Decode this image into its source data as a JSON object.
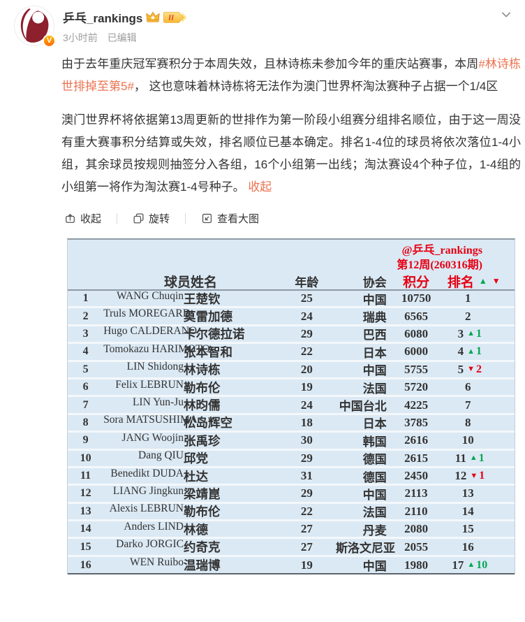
{
  "header": {
    "username": "乒乓_rankings",
    "timestamp": "3小时前",
    "edited_label": "已编辑",
    "vip_level": "II"
  },
  "post": {
    "p1_before": "由于去年重庆冠军赛积分于本周失效，且林诗栋未参加今年的重庆站赛事，本周",
    "p1_link": "#林诗栋世排掉至第5#",
    "p1_after": "， 这也意味着林诗栋将无法作为澳门世界杯淘汰赛种子占据一个1/4区",
    "p2": "澳门世界杯将依据第13周更新的世排作为第一阶段小组赛分组排名顺位，由于这一周没有重大赛事积分结算或失效，排名顺位已基本确定。排名1-4位的球员将依次落位1-4小组，其余球员按规则抽签分入各组，16个小组第一出线；淘汰赛设4个种子位，1-4组的小组第一将作为淘汰赛1-4号种子。",
    "p2_link": "收起"
  },
  "toolbar": {
    "collapse": "收起",
    "rotate": "旋转",
    "view_large": "查看大图"
  },
  "table_image": {
    "credit": "@乒乓_rankings",
    "week": "第12周(260316期)",
    "columns": {
      "name": "球员姓名",
      "age": "年龄",
      "assoc": "协会",
      "points": "积分",
      "rank": "排名"
    },
    "legend_up": "▲",
    "legend_down": "▼",
    "colors": {
      "table_bg": "#dbe9f4",
      "red": "#e60012",
      "green": "#00a651",
      "link": "#eb7350"
    },
    "rows": [
      {
        "no": "1",
        "name_en": "WANG Chuqin",
        "name_zh": "王楚钦",
        "age": "25",
        "assoc": "中国",
        "points": "10750",
        "rank": "1",
        "change": null
      },
      {
        "no": "2",
        "name_en": "Truls MOREGARD",
        "name_zh": "莫雷加德",
        "age": "24",
        "assoc": "瑞典",
        "points": "6565",
        "rank": "2",
        "change": null
      },
      {
        "no": "3",
        "name_en": "Hugo CALDERANO",
        "name_zh": "卡尔德拉诺",
        "age": "29",
        "assoc": "巴西",
        "points": "6080",
        "rank": "3",
        "change": {
          "dir": "up",
          "value": "1"
        }
      },
      {
        "no": "4",
        "name_en": "Tomokazu HARIMOTO",
        "name_zh": "张本智和",
        "age": "22",
        "assoc": "日本",
        "points": "6000",
        "rank": "4",
        "change": {
          "dir": "up",
          "value": "1"
        }
      },
      {
        "no": "5",
        "name_en": "LIN Shidong",
        "name_zh": "林诗栋",
        "age": "20",
        "assoc": "中国",
        "points": "5755",
        "rank": "5",
        "change": {
          "dir": "down",
          "value": "2"
        }
      },
      {
        "no": "6",
        "name_en": "Felix LEBRUN",
        "name_zh": "勒布伦",
        "age": "19",
        "assoc": "法国",
        "points": "5720",
        "rank": "6",
        "change": null
      },
      {
        "no": "7",
        "name_en": "LIN Yun-Ju",
        "name_zh": "林昀儒",
        "age": "24",
        "assoc": "中国台北",
        "points": "4225",
        "rank": "7",
        "change": null
      },
      {
        "no": "8",
        "name_en": "Sora MATSUSHIMA",
        "name_zh": "松岛辉空",
        "age": "18",
        "assoc": "日本",
        "points": "3785",
        "rank": "8",
        "change": null
      },
      {
        "no": "9",
        "name_en": "JANG Woojin",
        "name_zh": "张禹珍",
        "age": "30",
        "assoc": "韩国",
        "points": "2616",
        "rank": "10",
        "change": null
      },
      {
        "no": "10",
        "name_en": "Dang QIU",
        "name_zh": "邱党",
        "age": "29",
        "assoc": "德国",
        "points": "2615",
        "rank": "11",
        "change": {
          "dir": "up",
          "value": "1"
        }
      },
      {
        "no": "11",
        "name_en": "Benedikt DUDA",
        "name_zh": "杜达",
        "age": "31",
        "assoc": "德国",
        "points": "2450",
        "rank": "12",
        "change": {
          "dir": "down",
          "value": "1"
        }
      },
      {
        "no": "12",
        "name_en": "LIANG Jingkun",
        "name_zh": "梁靖崑",
        "age": "29",
        "assoc": "中国",
        "points": "2113",
        "rank": "13",
        "change": null
      },
      {
        "no": "13",
        "name_en": "Alexis LEBRUN",
        "name_zh": "勒布伦",
        "age": "22",
        "assoc": "法国",
        "points": "2110",
        "rank": "14",
        "change": null
      },
      {
        "no": "14",
        "name_en": "Anders LIND",
        "name_zh": "林德",
        "age": "27",
        "assoc": "丹麦",
        "points": "2080",
        "rank": "15",
        "change": null
      },
      {
        "no": "15",
        "name_en": "Darko JORGIC",
        "name_zh": "约奇克",
        "age": "27",
        "assoc": "斯洛文尼亚",
        "points": "2055",
        "rank": "16",
        "change": null
      },
      {
        "no": "16",
        "name_en": "WEN Ruibo",
        "name_zh": "温瑞博",
        "age": "19",
        "assoc": "中国",
        "points": "1980",
        "rank": "17",
        "change": {
          "dir": "up",
          "value": "10"
        }
      }
    ]
  }
}
